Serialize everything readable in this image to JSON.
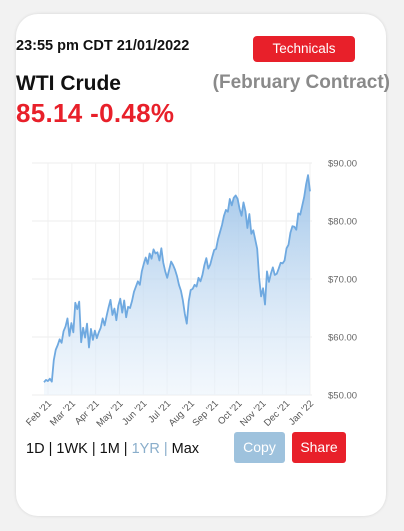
{
  "header": {
    "timestamp": "23:55 pm CDT 21/01/2022",
    "technicals_label": "Technicals"
  },
  "instrument": {
    "name": "WTI Crude",
    "contract": "(February Contract)",
    "price": "85.14",
    "change": "-0.48%"
  },
  "range_selector": {
    "items": [
      "1D",
      "1WK",
      "1M",
      "1YR",
      "Max"
    ],
    "active": "1YR"
  },
  "actions": {
    "copy_label": "Copy",
    "share_label": "Share"
  },
  "colors": {
    "accent_red": "#e8202a",
    "line_blue": "#6fa9e0",
    "copy_blue": "#9ec2dd"
  },
  "chart_data": {
    "type": "area",
    "ylim": [
      50,
      90
    ],
    "yticks": [
      "$50.00",
      "$60.00",
      "$70.00",
      "$80.00",
      "$90.00"
    ],
    "ytick_values": [
      50,
      60,
      70,
      80,
      90
    ],
    "xticks": [
      "Feb '21",
      "Mar '21",
      "Apr '21",
      "May '21",
      "Jun '21",
      "Jul '21",
      "Aug '21",
      "Sep '21",
      "Oct '21",
      "Nov '21",
      "Dec '21",
      "Jan '22"
    ],
    "grid": true,
    "series": [
      {
        "values": [
          52.2,
          52.6,
          52.4,
          52.8,
          52.3,
          56.0,
          57.8,
          58.6,
          59.6,
          59.0,
          61.0,
          61.8,
          63.2,
          60.2,
          62.4,
          60.8,
          65.9,
          64.8,
          66.1,
          59.1,
          61.6,
          59.9,
          62.3,
          58.2,
          61.4,
          59.5,
          61.1,
          59.8,
          60.8,
          61.6,
          63.2,
          62.0,
          63.6,
          65.1,
          66.4,
          63.8,
          64.9,
          62.9,
          65.4,
          66.6,
          64.2,
          66.3,
          63.4,
          65.2,
          65.0,
          66.2,
          67.8,
          68.7,
          69.6,
          69.0,
          71.3,
          72.6,
          73.7,
          72.6,
          74.4,
          73.5,
          75.1,
          74.4,
          74.6,
          73.2,
          75.3,
          72.8,
          71.3,
          70.2,
          71.6,
          73.0,
          72.4,
          71.6,
          70.5,
          69.0,
          68.0,
          66.3,
          64.0,
          62.3,
          66.2,
          68.1,
          68.3,
          69.0,
          68.7,
          70.2,
          69.6,
          70.7,
          72.4,
          73.6,
          71.8,
          72.5,
          73.8,
          75.0,
          75.2,
          76.9,
          78.1,
          79.3,
          80.9,
          81.9,
          81.6,
          83.8,
          82.7,
          84.0,
          84.4,
          83.8,
          82.1,
          80.9,
          83.2,
          81.7,
          78.8,
          81.2,
          77.8,
          78.4,
          76.8,
          75.2,
          70.2,
          67.0,
          68.4,
          65.6,
          71.3,
          69.5,
          70.9,
          72.0,
          70.7,
          70.9,
          71.8,
          72.8,
          72.7,
          73.2,
          75.3,
          75.9,
          78.0,
          79.1,
          79.0,
          78.5,
          81.3,
          81.1,
          82.6,
          84.1,
          86.3,
          87.9,
          85.1
        ]
      }
    ]
  }
}
